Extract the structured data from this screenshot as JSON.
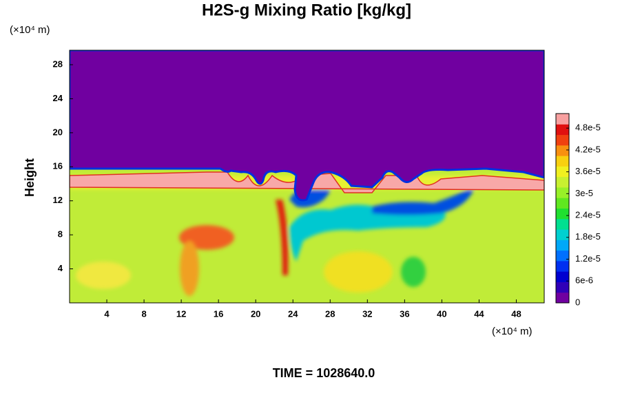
{
  "chart_data": {
    "type": "contour",
    "title": "H2S-g Mixing Ratio [kg/kg]",
    "ylabel": "Height",
    "xunit": "(×10⁴ m)",
    "yunit": "(×10⁴ m)",
    "footer": "TIME = 1028640.0",
    "xlim": [
      0,
      51
    ],
    "xticks": [
      4,
      8,
      12,
      16,
      20,
      24,
      28,
      32,
      36,
      40,
      44,
      48
    ],
    "ylim": [
      0,
      29.7
    ],
    "yticks": [
      4,
      8,
      12,
      16,
      20,
      24,
      28
    ],
    "colorbar": {
      "lim": [
        0,
        5.2e-05
      ],
      "ticks": [
        0,
        {
          "value": 6e-06,
          "label": "6e-6"
        },
        {
          "value": 1.2e-05,
          "label": "1.2e-5"
        },
        {
          "value": 1.8e-05,
          "label": "1.8e-5"
        },
        {
          "value": 2.4e-05,
          "label": "2.4e-5"
        },
        {
          "value": 3e-05,
          "label": "3e-5"
        },
        {
          "value": 3.6e-05,
          "label": "3.6e-5"
        },
        {
          "value": 4.2e-05,
          "label": "4.2e-5"
        },
        {
          "value": 4.8e-05,
          "label": "4.8e-5"
        }
      ],
      "colors": [
        "#7000a0",
        "#3000b8",
        "#0000d0",
        "#0030f0",
        "#0070ff",
        "#00a8f8",
        "#00d0d0",
        "#00e090",
        "#20e030",
        "#60e820",
        "#98f028",
        "#c8f030",
        "#f0f020",
        "#f8d010",
        "#f89010",
        "#f04010",
        "#e01010",
        "#f8a0a0"
      ]
    }
  }
}
